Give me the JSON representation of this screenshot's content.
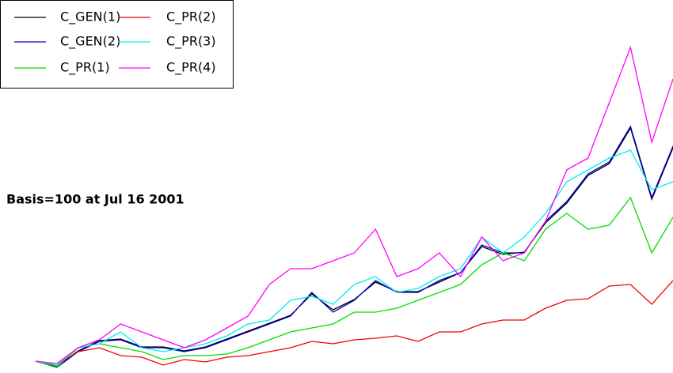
{
  "chart_data": {
    "type": "line",
    "annotation": "Basis=100 at Jul 16   2001",
    "ylim": [
      85,
      557
    ],
    "legend": "upper left",
    "series": [
      {
        "name": "C_GEN(1)",
        "color": "#000000",
        "values": [
          100,
          93,
          113,
          126,
          128,
          118,
          118,
          113,
          118,
          128,
          138,
          148,
          158,
          185,
          165,
          178,
          200,
          188,
          188,
          200,
          212,
          245,
          235,
          238,
          275,
          300,
          335,
          350,
          395,
          305,
          370
        ]
      },
      {
        "name": "C_GEN(2)",
        "color": "#0000cc",
        "values": [
          100,
          92,
          112,
          125,
          127,
          117,
          117,
          112,
          117,
          127,
          137,
          147,
          157,
          187,
          162,
          177,
          202,
          187,
          187,
          202,
          212,
          247,
          237,
          237,
          277,
          302,
          337,
          352,
          397,
          307,
          372
        ]
      },
      {
        "name": "C_PR(1)",
        "color": "#00dd00",
        "values": [
          100,
          92,
          117,
          122,
          117,
          112,
          102,
          107,
          107,
          109,
          117,
          127,
          137,
          142,
          147,
          162,
          162,
          167,
          177,
          187,
          197,
          222,
          237,
          227,
          267,
          287,
          267,
          272,
          307,
          237,
          282
        ]
      },
      {
        "name": "C_PR(2)",
        "color": "#ee0000",
        "values": [
          100,
          95,
          112,
          117,
          107,
          105,
          95,
          102,
          99,
          105,
          107,
          112,
          117,
          125,
          122,
          127,
          129,
          132,
          125,
          137,
          137,
          147,
          152,
          152,
          167,
          177,
          179,
          195,
          197,
          172,
          202
        ]
      },
      {
        "name": "C_PR(3)",
        "color": "#00eeee",
        "values": [
          100,
          95,
          117,
          122,
          137,
          117,
          112,
          117,
          122,
          132,
          147,
          152,
          177,
          182,
          172,
          197,
          207,
          187,
          192,
          207,
          217,
          257,
          237,
          257,
          287,
          327,
          342,
          357,
          367,
          317,
          327
        ]
      },
      {
        "name": "C_PR(4)",
        "color": "#ff00ff",
        "values": [
          100,
          97,
          117,
          127,
          147,
          137,
          127,
          117,
          127,
          142,
          157,
          197,
          217,
          217,
          227,
          237,
          267,
          207,
          217,
          237,
          207,
          257,
          227,
          237,
          277,
          342,
          357,
          427,
          497,
          377,
          457
        ]
      }
    ]
  }
}
